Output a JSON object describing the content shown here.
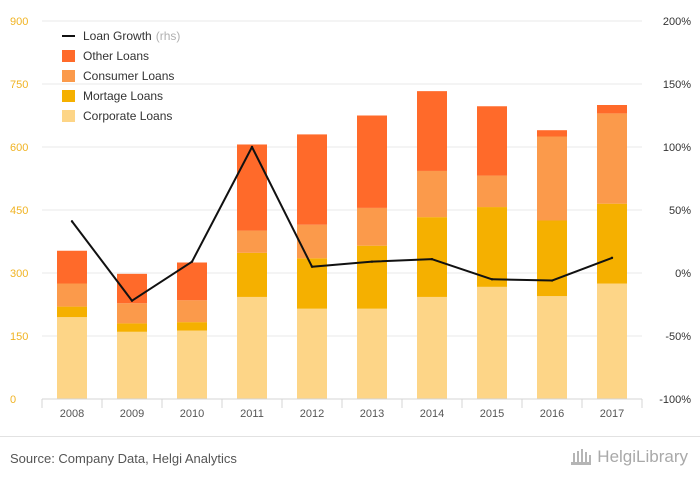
{
  "chart_data": {
    "type": "bar",
    "stacked": true,
    "categories": [
      "2008",
      "2009",
      "2010",
      "2011",
      "2012",
      "2013",
      "2014",
      "2015",
      "2016",
      "2017"
    ],
    "series": [
      {
        "name": "Corporate Loans",
        "color": "#fdd587",
        "values": [
          195,
          160,
          163,
          243,
          215,
          215,
          243,
          267,
          245,
          275
        ]
      },
      {
        "name": "Mortage Loans",
        "color": "#f5b000",
        "values": [
          25,
          20,
          20,
          105,
          120,
          150,
          190,
          190,
          180,
          190
        ]
      },
      {
        "name": "Consumer Loans",
        "color": "#fb9a4b",
        "values": [
          55,
          48,
          52,
          53,
          80,
          90,
          110,
          75,
          200,
          215
        ]
      },
      {
        "name": "Other Loans",
        "color": "#ff6a2a",
        "values": [
          78,
          70,
          90,
          205,
          215,
          220,
          190,
          165,
          15,
          20
        ]
      }
    ],
    "line_series": {
      "name": "Loan Growth",
      "note": "(rhs)",
      "color": "#111111",
      "axis": "right",
      "values": [
        41,
        -22,
        9,
        100,
        5,
        9,
        11,
        -5,
        -6,
        12
      ]
    },
    "left_axis": {
      "ylim": [
        0,
        900
      ],
      "ticks": [
        "0",
        "150",
        "300",
        "450",
        "600",
        "750",
        "900"
      ],
      "color": "#f0b323"
    },
    "right_axis": {
      "ylim": [
        -100,
        200
      ],
      "ticks": [
        "-100%",
        "-50%",
        "0%",
        "50%",
        "100%",
        "150%",
        "200%"
      ]
    },
    "legend": {
      "placement": "top-left",
      "items": [
        {
          "label": "Loan Growth",
          "note": "(rhs)",
          "kind": "line",
          "color": "#111111"
        },
        {
          "label": "Other Loans",
          "kind": "box",
          "color": "#ff6a2a"
        },
        {
          "label": "Consumer Loans",
          "kind": "box",
          "color": "#fb9a4b"
        },
        {
          "label": "Mortage Loans",
          "kind": "box",
          "color": "#f5b000"
        },
        {
          "label": "Corporate Loans",
          "kind": "box",
          "color": "#fdd587"
        }
      ]
    },
    "grid": true
  },
  "footer": {
    "source": "Source: Company Data, Helgi Analytics",
    "brand": "HelgiLibrary"
  }
}
